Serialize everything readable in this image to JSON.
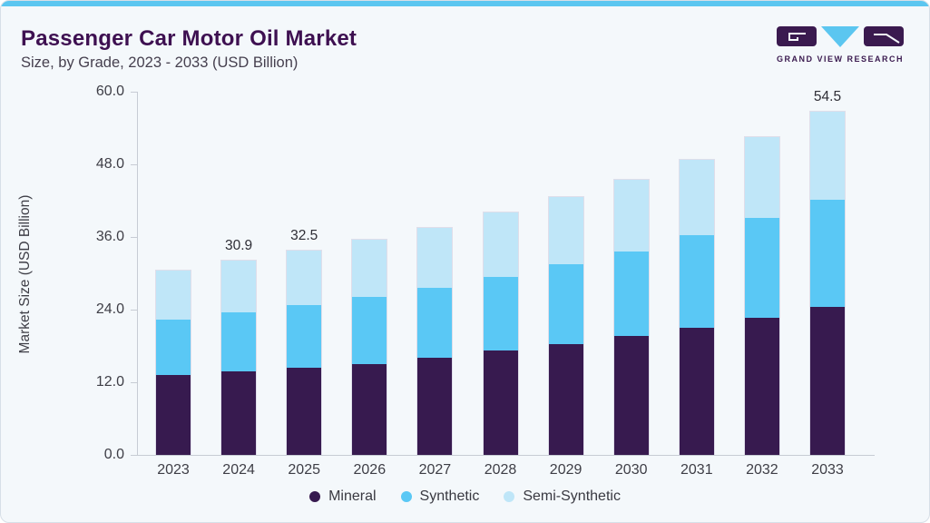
{
  "header": {
    "title": "Passenger Car Motor Oil Market",
    "subtitle": "Size, by Grade, 2023 - 2033 (USD Billion)"
  },
  "logo": {
    "brand": "GRAND VIEW RESEARCH",
    "triangle_color": "#5bc6f0",
    "block_color": "#3a1a4f"
  },
  "chart_data": {
    "type": "bar",
    "stacked": true,
    "title": "Passenger Car Motor Oil Market Size, by Grade, 2023 - 2033 (USD Billion)",
    "categories": [
      "2023",
      "2024",
      "2025",
      "2026",
      "2027",
      "2028",
      "2029",
      "2030",
      "2031",
      "2032",
      "2033"
    ],
    "series": [
      {
        "name": "Mineral",
        "color": "#371a4f",
        "values": [
          12.7,
          13.3,
          13.9,
          14.5,
          15.5,
          16.6,
          17.6,
          18.9,
          20.2,
          21.8,
          23.5
        ]
      },
      {
        "name": "Synthetic",
        "color": "#5ac8f5",
        "values": [
          8.9,
          9.4,
          10.0,
          10.6,
          11.1,
          11.7,
          12.7,
          13.5,
          14.7,
          15.8,
          17.1
        ]
      },
      {
        "name": "Semi-Synthetic",
        "color": "#bfe6f8",
        "values": [
          7.8,
          8.2,
          8.6,
          9.1,
          9.5,
          10.2,
          10.7,
          11.4,
          12.0,
          12.9,
          13.9
        ]
      }
    ],
    "totals": [
      29.4,
      30.9,
      32.5,
      34.2,
      36.1,
      38.5,
      41.0,
      43.8,
      46.9,
      50.5,
      54.5
    ],
    "data_labels": {
      "2024": "30.9",
      "2025": "32.5",
      "2033": "54.5"
    },
    "ylabel": "Market Size (USD Billion)",
    "xlabel": "",
    "ylim": [
      0,
      60
    ],
    "ytick_labels": [
      "0.0",
      "12.0",
      "24.0",
      "36.0",
      "48.0",
      "60.0"
    ],
    "ytick_values": [
      0,
      12,
      24,
      36,
      48,
      60
    ],
    "grid": false,
    "legend_position": "bottom"
  }
}
